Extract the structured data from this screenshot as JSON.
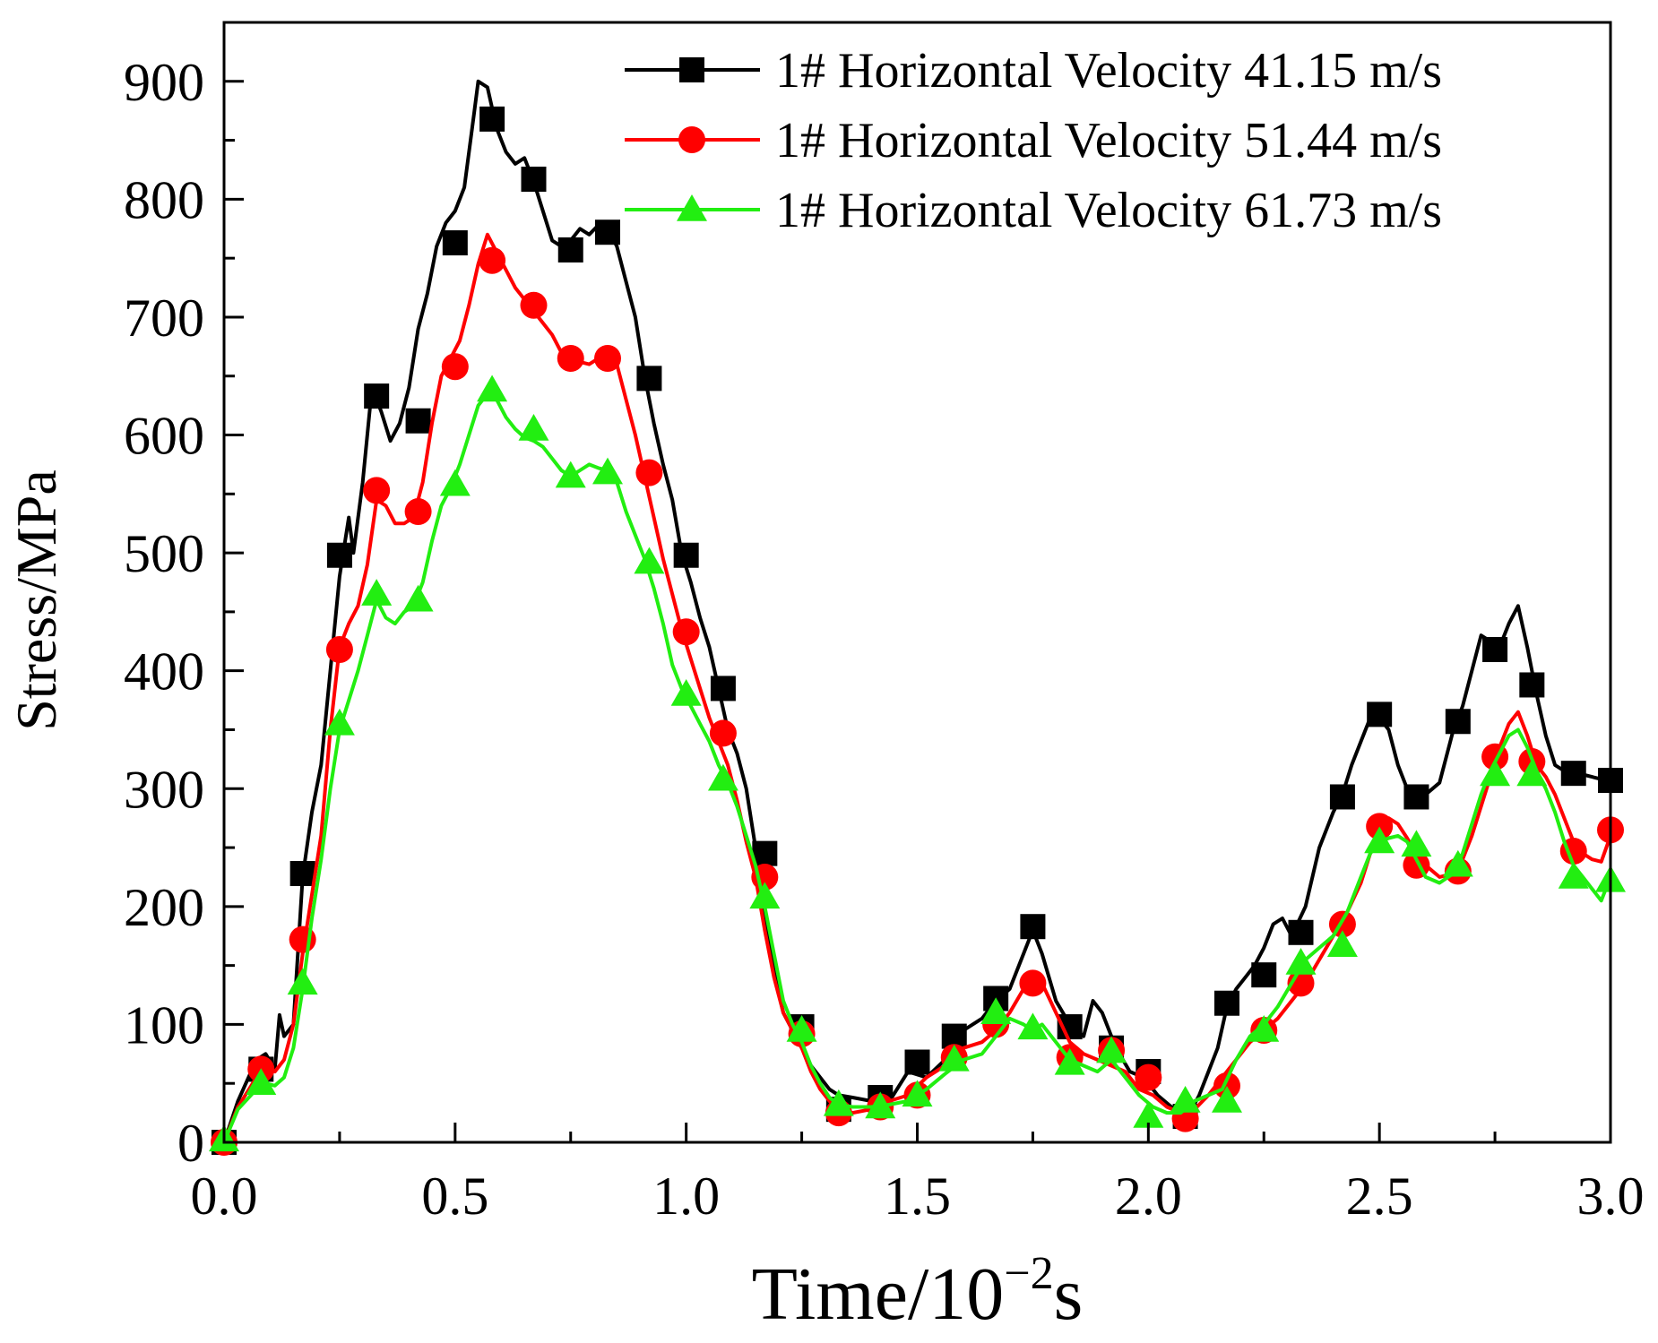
{
  "chart_data": {
    "type": "line",
    "title": "",
    "xlabel": "Time/10",
    "xlabel_exponent": "−2",
    "xlabel_unit": "s",
    "ylabel": "Stress/MPa",
    "xlim": [
      0,
      3
    ],
    "ylim": [
      0,
      950
    ],
    "xticks": [
      0.0,
      0.5,
      1.0,
      1.5,
      2.0,
      2.5,
      3.0
    ],
    "xtick_labels": [
      "0.0",
      "0.5",
      "1.0",
      "1.5",
      "2.0",
      "2.5",
      "3.0"
    ],
    "yticks": [
      0,
      100,
      200,
      300,
      400,
      500,
      600,
      700,
      800,
      900
    ],
    "ytick_labels": [
      "0",
      "100",
      "200",
      "300",
      "400",
      "500",
      "600",
      "700",
      "800",
      "900"
    ],
    "legend_position": "top-right",
    "series": [
      {
        "name": "1# Horizontal Velocity 41.15 m/s",
        "color": "#000000",
        "marker": "square",
        "x": [
          0.0,
          0.03,
          0.07,
          0.09,
          0.11,
          0.12,
          0.13,
          0.15,
          0.17,
          0.19,
          0.21,
          0.23,
          0.25,
          0.27,
          0.28,
          0.3,
          0.32,
          0.34,
          0.36,
          0.38,
          0.4,
          0.42,
          0.44,
          0.46,
          0.48,
          0.5,
          0.52,
          0.54,
          0.55,
          0.57,
          0.59,
          0.61,
          0.63,
          0.65,
          0.67,
          0.69,
          0.71,
          0.73,
          0.75,
          0.77,
          0.79,
          0.81,
          0.83,
          0.85,
          0.87,
          0.89,
          0.91,
          0.93,
          0.95,
          0.97,
          0.99,
          1.01,
          1.03,
          1.05,
          1.07,
          1.09,
          1.11,
          1.13,
          1.15,
          1.17,
          1.19,
          1.21,
          1.23,
          1.25,
          1.27,
          1.29,
          1.31,
          1.33,
          1.36,
          1.4,
          1.44,
          1.48,
          1.52,
          1.56,
          1.6,
          1.64,
          1.67,
          1.7,
          1.73,
          1.75,
          1.77,
          1.8,
          1.83,
          1.86,
          1.88,
          1.9,
          1.93,
          1.96,
          1.99,
          2.02,
          2.05,
          2.07,
          2.09,
          2.11,
          2.13,
          2.15,
          2.17,
          2.19,
          2.21,
          2.23,
          2.25,
          2.27,
          2.29,
          2.31,
          2.34,
          2.37,
          2.4,
          2.42,
          2.44,
          2.46,
          2.48,
          2.5,
          2.52,
          2.54,
          2.56,
          2.58,
          2.6,
          2.63,
          2.66,
          2.68,
          2.7,
          2.72,
          2.74,
          2.76,
          2.78,
          2.8,
          2.82,
          2.84,
          2.86,
          2.88,
          2.9,
          2.92,
          2.94,
          2.96,
          2.98,
          3.0
        ],
        "y": [
          0,
          35,
          70,
          75,
          62,
          108,
          90,
          100,
          225,
          280,
          320,
          400,
          480,
          530,
          500,
          560,
          640,
          620,
          595,
          610,
          640,
          690,
          720,
          760,
          780,
          790,
          810,
          870,
          900,
          895,
          860,
          840,
          830,
          835,
          815,
          790,
          765,
          760,
          765,
          775,
          770,
          778,
          775,
          760,
          730,
          700,
          650,
          610,
          575,
          545,
          500,
          475,
          445,
          420,
          385,
          350,
          330,
          300,
          250,
          190,
          145,
          110,
          95,
          80,
          65,
          55,
          45,
          40,
          38,
          35,
          35,
          60,
          55,
          70,
          95,
          105,
          120,
          130,
          160,
          180,
          160,
          120,
          100,
          90,
          120,
          110,
          80,
          60,
          55,
          40,
          30,
          28,
          25,
          40,
          60,
          80,
          115,
          130,
          140,
          150,
          165,
          185,
          190,
          175,
          200,
          250,
          280,
          295,
          320,
          340,
          360,
          360,
          350,
          320,
          300,
          295,
          295,
          305,
          350,
          370,
          400,
          430,
          425,
          420,
          440,
          455,
          420,
          380,
          345,
          320,
          315,
          315,
          312,
          310,
          308,
          300
        ],
        "marker_x": [
          0.0,
          0.08,
          0.17,
          0.25,
          0.33,
          0.42,
          0.5,
          0.58,
          0.67,
          0.75,
          0.83,
          0.92,
          1.0,
          1.08,
          1.17,
          1.25,
          1.33,
          1.42,
          1.5,
          1.58,
          1.67,
          1.75,
          1.83,
          1.92,
          2.0,
          2.08,
          2.17,
          2.25,
          2.33,
          2.42,
          2.5,
          2.58,
          2.67,
          2.75,
          2.83,
          2.92,
          3.0
        ],
        "marker_y": [
          0,
          62,
          228,
          498,
          633,
          612,
          763,
          868,
          817,
          757,
          772,
          648,
          498,
          385,
          245,
          98,
          28,
          38,
          68,
          90,
          122,
          183,
          98,
          80,
          60,
          22,
          118,
          142,
          178,
          293,
          363,
          293,
          357,
          418,
          388,
          313,
          307
        ]
      },
      {
        "name": "1# Horizontal Velocity 51.44 m/s",
        "color": "#ff0000",
        "marker": "circle",
        "x": [
          0.0,
          0.03,
          0.07,
          0.09,
          0.11,
          0.13,
          0.15,
          0.17,
          0.19,
          0.21,
          0.23,
          0.25,
          0.27,
          0.29,
          0.31,
          0.33,
          0.35,
          0.37,
          0.39,
          0.41,
          0.43,
          0.45,
          0.47,
          0.49,
          0.51,
          0.53,
          0.55,
          0.57,
          0.59,
          0.61,
          0.63,
          0.65,
          0.67,
          0.69,
          0.71,
          0.73,
          0.75,
          0.77,
          0.79,
          0.81,
          0.83,
          0.85,
          0.87,
          0.89,
          0.91,
          0.93,
          0.95,
          0.97,
          0.99,
          1.01,
          1.03,
          1.05,
          1.07,
          1.09,
          1.11,
          1.13,
          1.15,
          1.17,
          1.19,
          1.21,
          1.23,
          1.25,
          1.27,
          1.29,
          1.31,
          1.33,
          1.36,
          1.4,
          1.44,
          1.48,
          1.52,
          1.56,
          1.6,
          1.64,
          1.67,
          1.7,
          1.73,
          1.75,
          1.77,
          1.8,
          1.83,
          1.86,
          1.89,
          1.92,
          1.95,
          1.98,
          2.01,
          2.04,
          2.07,
          2.1,
          2.13,
          2.16,
          2.19,
          2.22,
          2.25,
          2.28,
          2.31,
          2.34,
          2.37,
          2.4,
          2.43,
          2.46,
          2.48,
          2.5,
          2.52,
          2.54,
          2.56,
          2.58,
          2.6,
          2.63,
          2.66,
          2.68,
          2.7,
          2.72,
          2.74,
          2.76,
          2.78,
          2.8,
          2.82,
          2.84,
          2.86,
          2.88,
          2.9,
          2.92,
          2.94,
          2.96,
          2.98,
          3.0
        ],
        "y": [
          0,
          30,
          55,
          62,
          60,
          70,
          100,
          160,
          210,
          260,
          350,
          420,
          440,
          455,
          490,
          545,
          540,
          525,
          525,
          530,
          560,
          610,
          650,
          665,
          680,
          710,
          745,
          770,
          755,
          740,
          725,
          715,
          705,
          695,
          685,
          670,
          665,
          662,
          660,
          665,
          668,
          660,
          630,
          600,
          565,
          530,
          495,
          465,
          435,
          410,
          385,
          360,
          340,
          320,
          290,
          255,
          225,
          180,
          140,
          110,
          95,
          80,
          60,
          45,
          35,
          28,
          25,
          28,
          35,
          40,
          55,
          65,
          80,
          85,
          95,
          110,
          130,
          140,
          135,
          110,
          85,
          75,
          70,
          65,
          60,
          45,
          40,
          30,
          25,
          28,
          40,
          55,
          70,
          85,
          95,
          105,
          120,
          135,
          155,
          175,
          195,
          220,
          245,
          268,
          275,
          270,
          258,
          245,
          235,
          225,
          228,
          240,
          260,
          285,
          310,
          335,
          355,
          365,
          345,
          320,
          310,
          295,
          275,
          255,
          245,
          240,
          238,
          260
        ],
        "marker_x": [
          0.0,
          0.08,
          0.17,
          0.25,
          0.33,
          0.42,
          0.5,
          0.58,
          0.67,
          0.75,
          0.83,
          0.92,
          1.0,
          1.08,
          1.17,
          1.25,
          1.33,
          1.42,
          1.5,
          1.58,
          1.67,
          1.75,
          1.83,
          1.92,
          2.0,
          2.08,
          2.17,
          2.25,
          2.33,
          2.42,
          2.5,
          2.58,
          2.67,
          2.75,
          2.83,
          2.92,
          3.0
        ],
        "marker_y": [
          0,
          62,
          172,
          418,
          553,
          535,
          658,
          748,
          710,
          665,
          665,
          568,
          433,
          347,
          225,
          92,
          25,
          30,
          40,
          72,
          100,
          135,
          72,
          78,
          55,
          20,
          48,
          95,
          135,
          185,
          268,
          235,
          230,
          327,
          323,
          247,
          265
        ]
      },
      {
        "name": "1# Horizontal Velocity 61.73 m/s",
        "color": "#22ee11",
        "marker": "triangle",
        "x": [
          0.0,
          0.03,
          0.07,
          0.09,
          0.11,
          0.13,
          0.15,
          0.17,
          0.19,
          0.21,
          0.23,
          0.25,
          0.27,
          0.29,
          0.31,
          0.33,
          0.35,
          0.37,
          0.39,
          0.41,
          0.43,
          0.45,
          0.47,
          0.49,
          0.51,
          0.53,
          0.55,
          0.57,
          0.59,
          0.61,
          0.63,
          0.65,
          0.67,
          0.69,
          0.71,
          0.73,
          0.75,
          0.77,
          0.79,
          0.81,
          0.83,
          0.85,
          0.87,
          0.89,
          0.91,
          0.93,
          0.95,
          0.97,
          0.99,
          1.01,
          1.03,
          1.05,
          1.07,
          1.09,
          1.11,
          1.13,
          1.15,
          1.17,
          1.19,
          1.21,
          1.23,
          1.25,
          1.27,
          1.29,
          1.31,
          1.33,
          1.36,
          1.4,
          1.44,
          1.48,
          1.52,
          1.56,
          1.6,
          1.64,
          1.67,
          1.7,
          1.73,
          1.75,
          1.77,
          1.8,
          1.83,
          1.86,
          1.89,
          1.92,
          1.95,
          1.98,
          2.01,
          2.04,
          2.07,
          2.1,
          2.13,
          2.16,
          2.19,
          2.22,
          2.25,
          2.28,
          2.31,
          2.34,
          2.37,
          2.4,
          2.43,
          2.46,
          2.48,
          2.5,
          2.52,
          2.54,
          2.56,
          2.58,
          2.6,
          2.63,
          2.66,
          2.68,
          2.7,
          2.72,
          2.74,
          2.76,
          2.78,
          2.8,
          2.82,
          2.84,
          2.86,
          2.88,
          2.9,
          2.92,
          2.94,
          2.96,
          2.98,
          3.0
        ],
        "y": [
          0,
          28,
          45,
          50,
          48,
          55,
          80,
          130,
          190,
          240,
          300,
          350,
          375,
          400,
          430,
          460,
          445,
          440,
          450,
          455,
          475,
          510,
          540,
          555,
          575,
          600,
          625,
          635,
          630,
          615,
          605,
          598,
          595,
          590,
          580,
          570,
          565,
          570,
          575,
          572,
          570,
          560,
          535,
          515,
          495,
          470,
          440,
          405,
          385,
          370,
          355,
          340,
          320,
          305,
          285,
          260,
          235,
          200,
          160,
          120,
          100,
          85,
          65,
          50,
          38,
          32,
          30,
          30,
          32,
          35,
          45,
          58,
          70,
          75,
          90,
          105,
          100,
          95,
          100,
          85,
          70,
          65,
          60,
          70,
          55,
          40,
          30,
          25,
          25,
          35,
          40,
          45,
          70,
          90,
          100,
          115,
          135,
          155,
          165,
          175,
          195,
          225,
          245,
          255,
          258,
          260,
          255,
          240,
          225,
          220,
          228,
          245,
          270,
          295,
          315,
          330,
          345,
          350,
          335,
          315,
          300,
          280,
          255,
          235,
          225,
          215,
          205,
          225
        ],
        "marker_x": [
          0.0,
          0.08,
          0.17,
          0.25,
          0.33,
          0.42,
          0.5,
          0.58,
          0.67,
          0.75,
          0.83,
          0.92,
          1.0,
          1.08,
          1.17,
          1.25,
          1.33,
          1.42,
          1.5,
          1.58,
          1.67,
          1.75,
          1.83,
          1.92,
          2.0,
          2.08,
          2.17,
          2.25,
          2.33,
          2.42,
          2.5,
          2.58,
          2.67,
          2.75,
          2.83,
          2.92,
          3.0
        ],
        "marker_y": [
          2,
          50,
          135,
          355,
          465,
          460,
          558,
          638,
          605,
          565,
          568,
          492,
          380,
          308,
          208,
          95,
          32,
          30,
          40,
          70,
          110,
          97,
          67,
          77,
          22,
          35,
          35,
          95,
          152,
          167,
          255,
          252,
          235,
          312,
          312,
          225,
          222
        ]
      }
    ]
  }
}
